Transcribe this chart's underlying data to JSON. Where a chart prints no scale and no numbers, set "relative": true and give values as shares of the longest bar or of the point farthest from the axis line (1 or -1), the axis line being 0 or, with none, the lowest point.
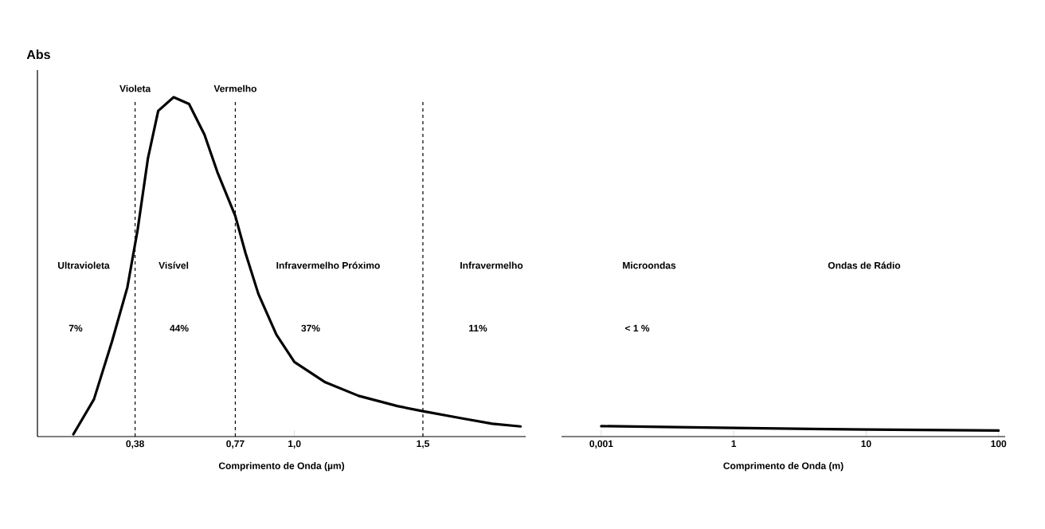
{
  "chart_data": [
    {
      "type": "line",
      "relative": true,
      "ylabel": "Abs",
      "xlabel": "Comprimento de Onda (µm)",
      "color": "#000000",
      "marker": "none",
      "x": [
        0.14,
        0.22,
        0.29,
        0.35,
        0.39,
        0.43,
        0.47,
        0.53,
        0.59,
        0.65,
        0.7,
        0.77,
        0.81,
        0.86,
        0.93,
        1.0,
        1.12,
        1.25,
        1.4,
        1.5,
        1.65,
        1.77,
        1.88
      ],
      "values": [
        0.007,
        0.11,
        0.28,
        0.44,
        0.61,
        0.82,
        0.96,
        1.0,
        0.98,
        0.89,
        0.78,
        0.65,
        0.54,
        0.42,
        0.3,
        0.22,
        0.16,
        0.12,
        0.09,
        0.075,
        0.054,
        0.038,
        0.03
      ],
      "xlim": [
        0,
        1.9
      ],
      "xticks": [
        {
          "value": 0.38,
          "label": "0,38"
        },
        {
          "value": 0.77,
          "label": "0,77"
        },
        {
          "value": 1.0,
          "label": "1,0"
        },
        {
          "value": 1.5,
          "label": "1,5"
        }
      ],
      "ref_lines": [
        {
          "axis": "x",
          "value": 0.38,
          "label": "Violeta",
          "line_style": "dashed"
        },
        {
          "axis": "x",
          "value": 0.77,
          "label": "Vermelho",
          "line_style": "dashed"
        },
        {
          "axis": "x",
          "value": 1.5,
          "label": null,
          "line_style": "dashed"
        }
      ],
      "annotations": [
        "Ultravioleta",
        "Visível",
        "Infravermelho Próximo",
        "Infravermelho",
        "7%",
        "44%",
        "37%",
        "11%"
      ]
    },
    {
      "type": "line",
      "relative": true,
      "xlabel": "Comprimento de Onda (m)",
      "color": "#000000",
      "marker": "none",
      "categories": [
        "0,001",
        "1",
        "10",
        "100"
      ],
      "values": [
        1,
        0.83,
        0.67,
        0.58
      ],
      "annotations": [
        "Microondas",
        "Ondas de Rádio",
        "< 1 %"
      ]
    }
  ]
}
